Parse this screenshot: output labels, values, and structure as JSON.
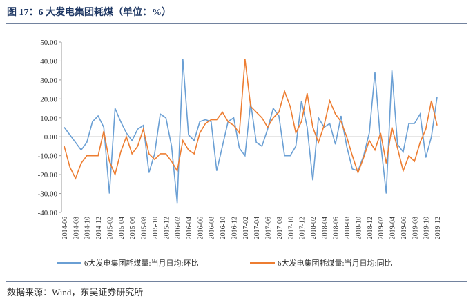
{
  "chart_data": {
    "type": "line",
    "title": "图 17：6 大发电集团耗煤（单位：%）",
    "source": "数据来源：Wind，东吴证券研究所",
    "categories": [
      "2014-06",
      null,
      "2014-08",
      null,
      "2014-10",
      null,
      "2014-12",
      null,
      "2015-02",
      null,
      "2015-04",
      null,
      "2015-06",
      null,
      "2015-08",
      null,
      "2015-10",
      null,
      "2015-12",
      null,
      "2016-02",
      null,
      "2016-04",
      null,
      "2016-06",
      null,
      "2016-08",
      null,
      "2016-10",
      null,
      "2016-12",
      null,
      "2017-02",
      null,
      "2017-04",
      null,
      "2017-06",
      null,
      "2017-08",
      null,
      "2017-10",
      null,
      "2017-12",
      null,
      "2018-02",
      null,
      "2018-04",
      null,
      "2018-06",
      null,
      "2018-08",
      null,
      "2018-10",
      null,
      "2018-12",
      null,
      "2019-02",
      null,
      "2019-04",
      null,
      "2019-06",
      null,
      "2019-08",
      null,
      "2019-10",
      null,
      "2019-12"
    ],
    "series": [
      {
        "name": "6大发电集团耗煤量:当月日均:环比",
        "color": "#6a9fd4",
        "values": [
          5,
          1,
          -3,
          -7,
          -3,
          8,
          11,
          5,
          -30,
          15,
          8,
          2,
          -2,
          4,
          6,
          -19,
          -9,
          12,
          10,
          -5,
          -35,
          41,
          1,
          -2,
          8,
          9,
          8,
          -18,
          -5,
          8,
          10,
          -6,
          -10,
          18,
          -3,
          -5,
          4,
          15,
          11,
          -10,
          -10,
          -5,
          19,
          5,
          -23,
          10,
          5,
          7,
          -4,
          11,
          -5,
          -17,
          -18,
          -10,
          2,
          34,
          -3,
          -30,
          35,
          -4,
          -8,
          7,
          7,
          12,
          -11,
          0,
          21
        ]
      },
      {
        "name": "6大发电集团耗煤量:当月日均:同比",
        "color": "#ed7d31",
        "values": [
          -5,
          -16,
          -22,
          -14,
          -10,
          -10,
          -10,
          3,
          -13,
          -20,
          -8,
          0,
          -9,
          -5,
          4,
          -9,
          -12,
          -9,
          -9,
          -13,
          -18,
          -2,
          -7,
          -9,
          2,
          7,
          9,
          9,
          13,
          8,
          6,
          2,
          41,
          16,
          13,
          10,
          5,
          10,
          13,
          24,
          16,
          2,
          8,
          23,
          5,
          -3,
          6,
          19,
          12,
          8,
          0,
          -10,
          -19,
          -11,
          -2,
          -7,
          2,
          -14,
          5,
          -6,
          -18,
          -10,
          -13,
          -3,
          4,
          19,
          6
        ]
      }
    ],
    "ylim": [
      -40,
      50
    ],
    "yticks": [
      {
        "value": 50,
        "label": "50.00"
      },
      {
        "value": 40,
        "label": "40.00"
      },
      {
        "value": 30,
        "label": "30.00"
      },
      {
        "value": 20,
        "label": "20.00"
      },
      {
        "value": 10,
        "label": "10.00"
      },
      {
        "value": 0,
        "label": "0.00"
      },
      {
        "value": -10,
        "label": "-10.00"
      },
      {
        "value": -20,
        "label": "-20.00"
      },
      {
        "value": -30,
        "label": "-30.00"
      },
      {
        "value": -40,
        "label": "-40.00"
      }
    ]
  }
}
